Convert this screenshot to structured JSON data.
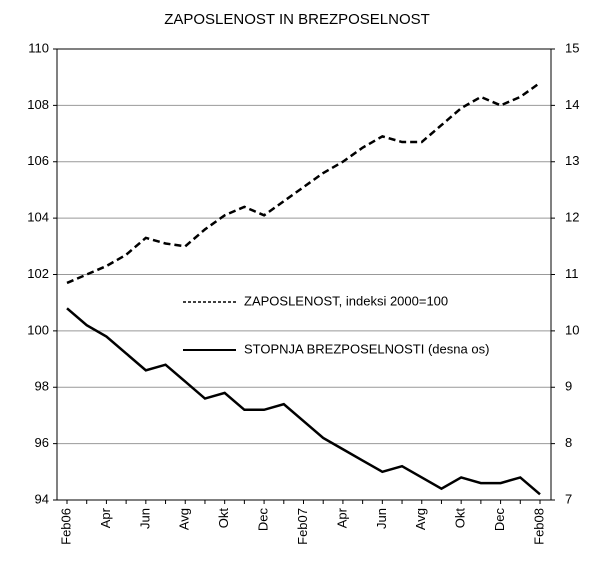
{
  "chart_data": {
    "type": "line",
    "title": "ZAPOSLENOST IN BREZPOSELNOST",
    "categories": [
      "Feb06",
      null,
      "Apr",
      null,
      "Jun",
      null,
      "Avg",
      null,
      "Okt",
      null,
      "Dec",
      null,
      "Feb07",
      null,
      "Apr",
      null,
      "Jun",
      null,
      "Avg",
      null,
      "Okt",
      null,
      "Dec",
      null,
      "Feb08"
    ],
    "series": [
      {
        "name": "ZAPOSLENOST, indeksi 2000=100",
        "color": "#000000",
        "dash": true,
        "values": [
          101.7,
          102.0,
          102.3,
          102.7,
          103.3,
          103.1,
          103.0,
          103.6,
          104.1,
          104.4,
          104.1,
          104.6,
          105.1,
          105.6,
          106.0,
          106.5,
          106.9,
          106.7,
          106.7,
          107.3,
          107.9,
          108.3,
          108.0,
          108.3,
          108.8
        ]
      },
      {
        "name": "STOPNJA BREZPOSELNOSTI (desna os)",
        "color": "#000000",
        "dash": false,
        "axis": "y2",
        "values": [
          10.4,
          10.1,
          9.9,
          9.6,
          9.3,
          9.4,
          9.1,
          8.8,
          8.9,
          8.6,
          8.6,
          8.7,
          8.4,
          8.1,
          7.9,
          7.7,
          7.5,
          7.6,
          7.4,
          7.2,
          7.4,
          7.3,
          7.3,
          7.4,
          7.1
        ]
      }
    ],
    "ylim": [
      94,
      110
    ],
    "yticks": [
      94,
      96,
      98,
      100,
      102,
      104,
      106,
      108,
      110
    ],
    "y2lim": [
      7,
      15
    ],
    "y2ticks": [
      7,
      8,
      9,
      10,
      11,
      12,
      13,
      14,
      15
    ],
    "grid": true
  }
}
